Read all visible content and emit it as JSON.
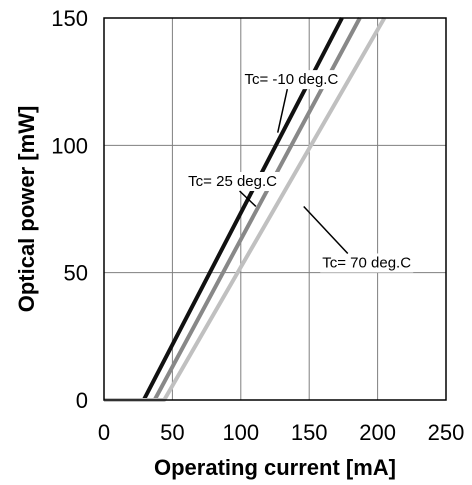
{
  "chart_data": {
    "type": "line",
    "title": "",
    "xlabel": "Operating current [mA]",
    "ylabel": "Optical power [mW]",
    "xlim": [
      0,
      250
    ],
    "ylim": [
      0,
      150
    ],
    "xticks": [
      0,
      50,
      100,
      150,
      200,
      250
    ],
    "yticks": [
      0,
      50,
      100,
      150
    ],
    "grid": true,
    "legend": "none",
    "series": [
      {
        "color": "#111111",
        "x": [
          0,
          25,
          29,
          174
        ],
        "y": [
          0,
          0,
          0,
          150
        ]
      },
      {
        "color": "#888888",
        "x": [
          0,
          33,
          37,
          187
        ],
        "y": [
          0,
          0,
          0,
          150
        ]
      },
      {
        "color": "#c0c0c0",
        "x": [
          0,
          39,
          44,
          205
        ],
        "y": [
          0,
          0,
          0,
          150
        ]
      }
    ],
    "annotations": [
      {
        "text": "Tc= -10 deg.C",
        "x": 137,
        "y": 126,
        "arrow_to_x": 127,
        "arrow_to_y": 105
      },
      {
        "text": "Tc= 25 deg.C",
        "x": 94,
        "y": 86,
        "arrow_to_x": 111,
        "arrow_to_y": 76
      },
      {
        "text": "Tc= 70 deg.C",
        "x": 192,
        "y": 54,
        "arrow_to_x": 146,
        "arrow_to_y": 76
      }
    ]
  }
}
